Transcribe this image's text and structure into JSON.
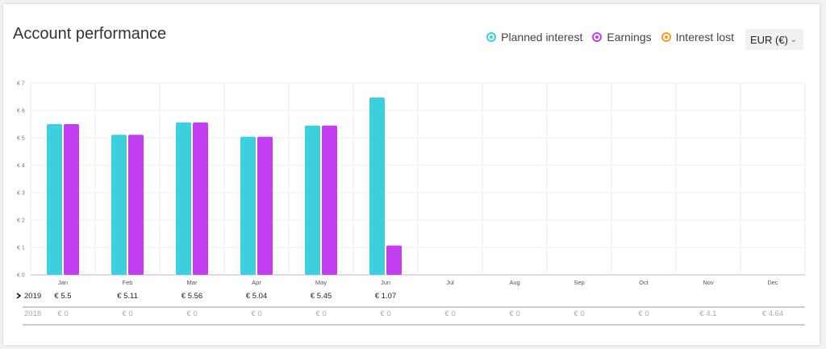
{
  "header": {
    "title": "Account performance"
  },
  "legend": [
    {
      "label": "Planned interest",
      "color": "#3ccfdc"
    },
    {
      "label": "Earnings",
      "color": "#c13ff0"
    },
    {
      "label": "Interest lost",
      "color": "#f0a020"
    }
  ],
  "currency": {
    "selected": "EUR (€)"
  },
  "chart_data": {
    "type": "bar",
    "categories": [
      "Jan",
      "Feb",
      "Mar",
      "Apr",
      "May",
      "Jun",
      "Jul",
      "Aug",
      "Sep",
      "Oct",
      "Nov",
      "Dec"
    ],
    "series": [
      {
        "name": "Planned interest",
        "color": "#3ccfdc",
        "values": [
          5.5,
          5.11,
          5.56,
          5.04,
          5.45,
          6.47,
          null,
          null,
          null,
          null,
          null,
          null
        ]
      },
      {
        "name": "Earnings",
        "color": "#c13ff0",
        "values": [
          5.5,
          5.11,
          5.56,
          5.04,
          5.45,
          1.07,
          null,
          null,
          null,
          null,
          null,
          null
        ]
      }
    ],
    "yticks": [
      "€ 0",
      "€ 1",
      "€ 2",
      "€ 3",
      "€ 4",
      "€ 5",
      "€ 6",
      "€ 7"
    ],
    "ylim": [
      0,
      7
    ],
    "grid": true
  },
  "table": {
    "rows": [
      {
        "year": "2019",
        "expanded": true,
        "values": [
          "€ 5.5",
          "€ 5.11",
          "€ 5.56",
          "€ 5.04",
          "€ 5.45",
          "€ 1.07",
          "",
          "",
          "",
          "",
          "",
          ""
        ]
      },
      {
        "year": "2018",
        "expanded": false,
        "values": [
          "€ 0",
          "€ 0",
          "€ 0",
          "€ 0",
          "€ 0",
          "€ 0",
          "€ 0",
          "€ 0",
          "€ 0",
          "€ 0",
          "€ 4.1",
          "€ 4.64"
        ]
      }
    ]
  }
}
